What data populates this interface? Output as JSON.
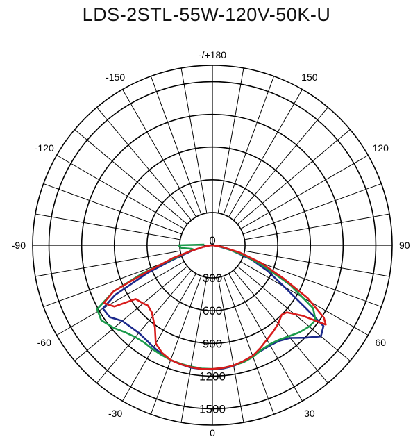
{
  "chart_data": {
    "type": "polar",
    "title": "LDS-2STL-55W-120V-50K-U",
    "angle_labels": [
      {
        "angle": 180,
        "text": "-/+180"
      },
      {
        "angle": 150,
        "text": "150"
      },
      {
        "angle": -150,
        "text": "-150"
      },
      {
        "angle": 120,
        "text": "120"
      },
      {
        "angle": -120,
        "text": "-120"
      },
      {
        "angle": 90,
        "text": "90"
      },
      {
        "angle": -90,
        "text": "-90"
      },
      {
        "angle": 60,
        "text": "60"
      },
      {
        "angle": -60,
        "text": "-60"
      },
      {
        "angle": 30,
        "text": "30"
      },
      {
        "angle": -30,
        "text": "-30"
      },
      {
        "angle": 0,
        "text": "0"
      }
    ],
    "radial_ticks": [
      0,
      300,
      600,
      900,
      1200,
      1500
    ],
    "rlim": [
      0,
      1650
    ],
    "angular_grid_step": 10,
    "grid": true,
    "series": [
      {
        "color": "#1c2a8c",
        "points": [
          [
            -90,
            0
          ],
          [
            -85,
            25
          ],
          [
            -80,
            80
          ],
          [
            -75,
            190
          ],
          [
            -70,
            380
          ],
          [
            -67,
            640
          ],
          [
            -63,
            1000
          ],
          [
            -60,
            1160
          ],
          [
            -55,
            1150
          ],
          [
            -50,
            1080
          ],
          [
            -45,
            1060
          ],
          [
            -40,
            1050
          ],
          [
            -35,
            1060
          ],
          [
            -30,
            1080
          ],
          [
            -25,
            1100
          ],
          [
            -20,
            1120
          ],
          [
            -15,
            1130
          ],
          [
            -10,
            1140
          ],
          [
            -5,
            1140
          ],
          [
            0,
            1140
          ],
          [
            5,
            1135
          ],
          [
            10,
            1125
          ],
          [
            15,
            1100
          ],
          [
            20,
            1080
          ],
          [
            25,
            1065
          ],
          [
            30,
            1060
          ],
          [
            35,
            1070
          ],
          [
            40,
            1110
          ],
          [
            45,
            1200
          ],
          [
            50,
            1300
          ],
          [
            54,
            1260
          ],
          [
            56,
            1040
          ],
          [
            60,
            760
          ],
          [
            65,
            560
          ],
          [
            70,
            380
          ],
          [
            75,
            180
          ],
          [
            80,
            60
          ],
          [
            85,
            10
          ],
          [
            90,
            0
          ]
        ]
      },
      {
        "color": "#1a9a4a",
        "points": [
          [
            -95,
            75
          ],
          [
            -90,
            310
          ],
          [
            -85,
            285
          ],
          [
            -80,
            190
          ],
          [
            -78,
            180
          ],
          [
            -75,
            220
          ],
          [
            -70,
            460
          ],
          [
            -68,
            700
          ],
          [
            -65,
            1000
          ],
          [
            -61,
            1210
          ],
          [
            -56,
            1230
          ],
          [
            -50,
            1180
          ],
          [
            -45,
            1130
          ],
          [
            -40,
            1100
          ],
          [
            -35,
            1090
          ],
          [
            -30,
            1100
          ],
          [
            -25,
            1110
          ],
          [
            -20,
            1120
          ],
          [
            -15,
            1125
          ],
          [
            -10,
            1130
          ],
          [
            -5,
            1135
          ],
          [
            0,
            1135
          ],
          [
            5,
            1130
          ],
          [
            10,
            1120
          ],
          [
            15,
            1110
          ],
          [
            20,
            1090
          ],
          [
            25,
            1060
          ],
          [
            30,
            1050
          ],
          [
            35,
            1060
          ],
          [
            40,
            1090
          ],
          [
            45,
            1130
          ],
          [
            50,
            1160
          ],
          [
            54,
            1170
          ],
          [
            58,
            1090
          ],
          [
            63,
            800
          ],
          [
            68,
            500
          ],
          [
            72,
            320
          ],
          [
            78,
            120
          ],
          [
            85,
            30
          ],
          [
            90,
            10
          ]
        ]
      },
      {
        "color": "#d81b1b",
        "points": [
          [
            -90,
            0
          ],
          [
            -85,
            30
          ],
          [
            -80,
            90
          ],
          [
            -75,
            200
          ],
          [
            -72,
            380
          ],
          [
            -68,
            640
          ],
          [
            -65,
            1000
          ],
          [
            -62,
            1130
          ],
          [
            -58,
            1060
          ],
          [
            -55,
            860
          ],
          [
            -50,
            830
          ],
          [
            -47,
            810
          ],
          [
            -42,
            830
          ],
          [
            -35,
            920
          ],
          [
            -30,
            1040
          ],
          [
            -25,
            1090
          ],
          [
            -20,
            1120
          ],
          [
            -15,
            1130
          ],
          [
            -10,
            1135
          ],
          [
            -5,
            1140
          ],
          [
            0,
            1135
          ],
          [
            5,
            1130
          ],
          [
            10,
            1120
          ],
          [
            15,
            1100
          ],
          [
            20,
            1080
          ],
          [
            25,
            1040
          ],
          [
            30,
            1000
          ],
          [
            35,
            970
          ],
          [
            40,
            940
          ],
          [
            45,
            900
          ],
          [
            48,
            920
          ],
          [
            52,
            1050
          ],
          [
            55,
            1270
          ],
          [
            57,
            1220
          ],
          [
            61,
            1000
          ],
          [
            65,
            720
          ],
          [
            70,
            480
          ],
          [
            75,
            260
          ],
          [
            80,
            100
          ],
          [
            85,
            20
          ],
          [
            90,
            0
          ]
        ]
      }
    ]
  }
}
